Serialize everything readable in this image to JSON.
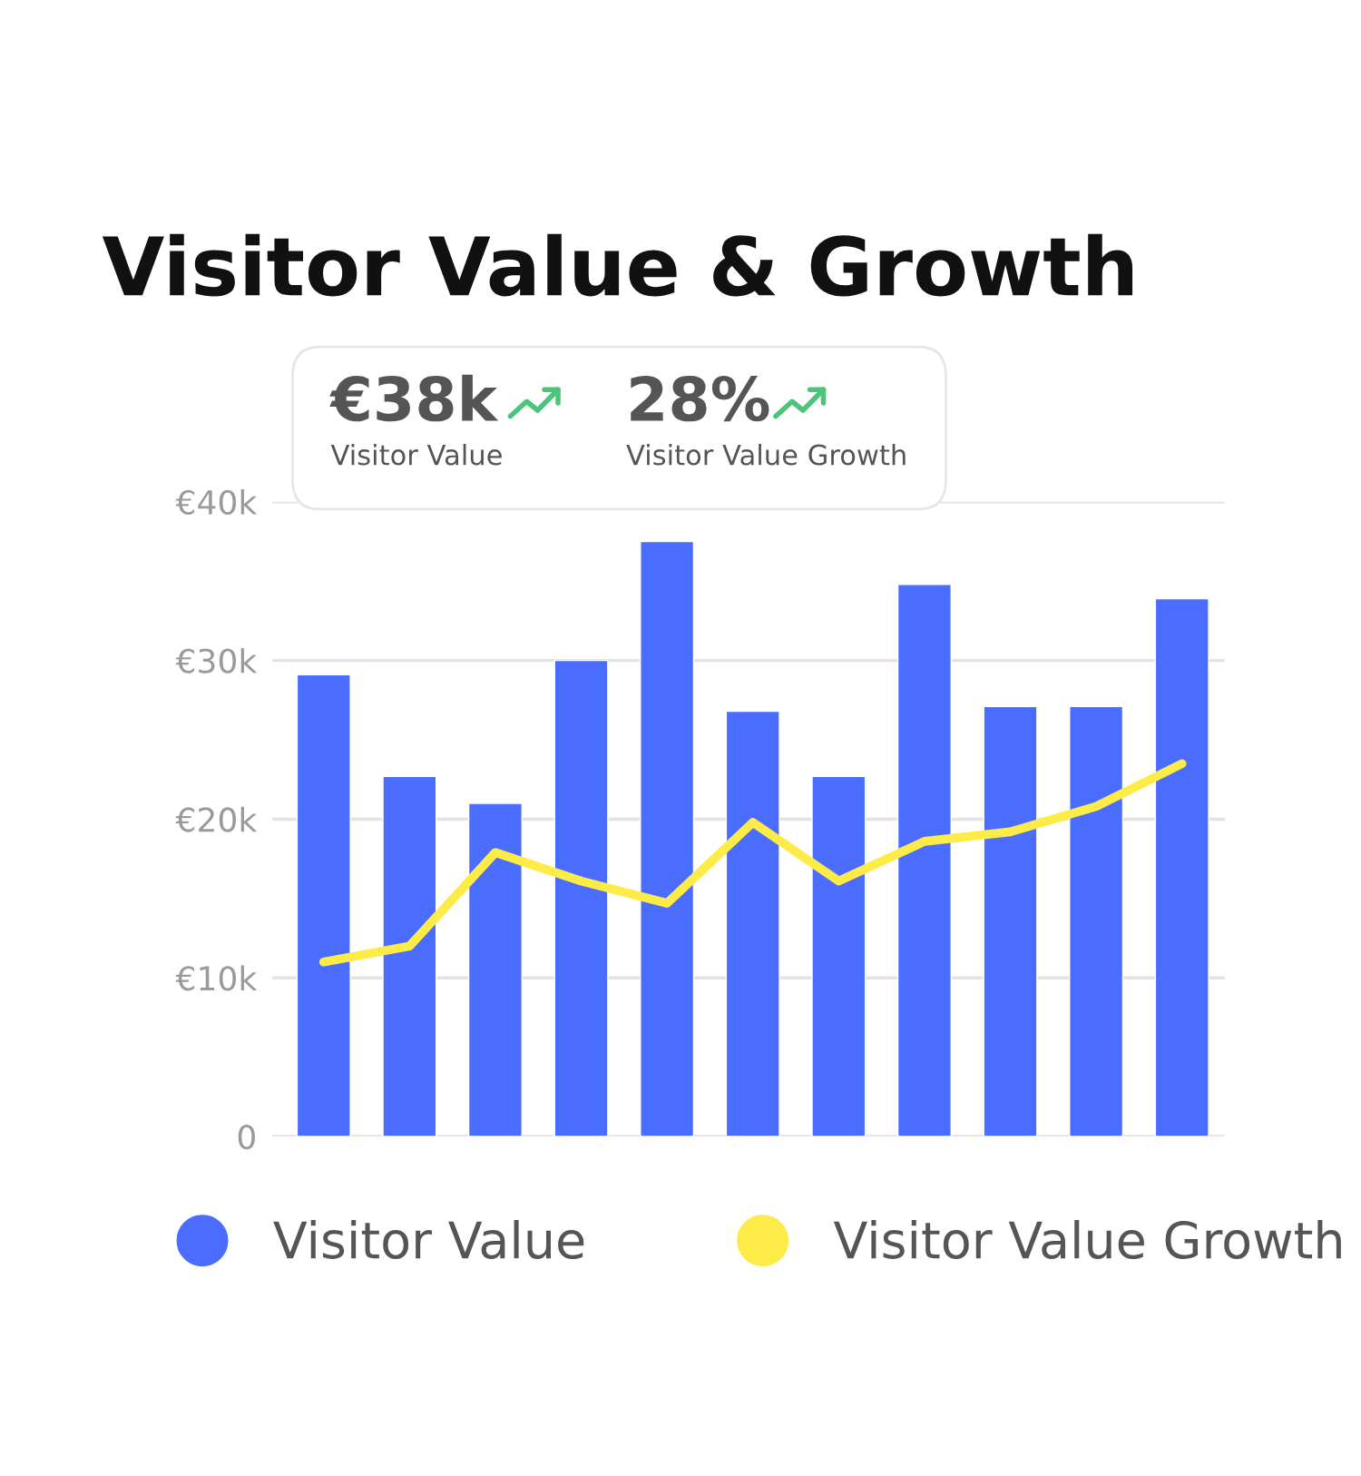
{
  "chart_data": {
    "type": "bar",
    "title": "Visitor Value & Growth",
    "categories": [
      null,
      null,
      null,
      null,
      null,
      null,
      null,
      null,
      null,
      null,
      null
    ],
    "series": [
      {
        "name": "Visitor Value",
        "color": "#4a6cff",
        "values": [
          29100,
          22700,
          21000,
          30000,
          37500,
          26800,
          22700,
          34800,
          27100,
          27100,
          33900
        ]
      },
      {
        "name": "Visitor Value Growth",
        "type": "line",
        "color": "#fdeb47",
        "values": [
          11000,
          12000,
          17900,
          16100,
          14700,
          19800,
          16100,
          18600,
          19200,
          20800,
          23500
        ]
      }
    ],
    "ylim": [
      0,
      40000
    ],
    "yticks": [
      0,
      {
        "value": 10000,
        "label": "€10k"
      },
      {
        "value": 20000,
        "label": "€20k"
      },
      {
        "value": 30000,
        "label": "€30k"
      },
      {
        "value": 40000,
        "label": "€40k"
      }
    ],
    "grid": "y",
    "legend": "bottom",
    "tick_labels": "y",
    "annotations": [
      "€38k",
      "Visitor Value",
      "28%",
      "Visitor Value Growth"
    ]
  }
}
